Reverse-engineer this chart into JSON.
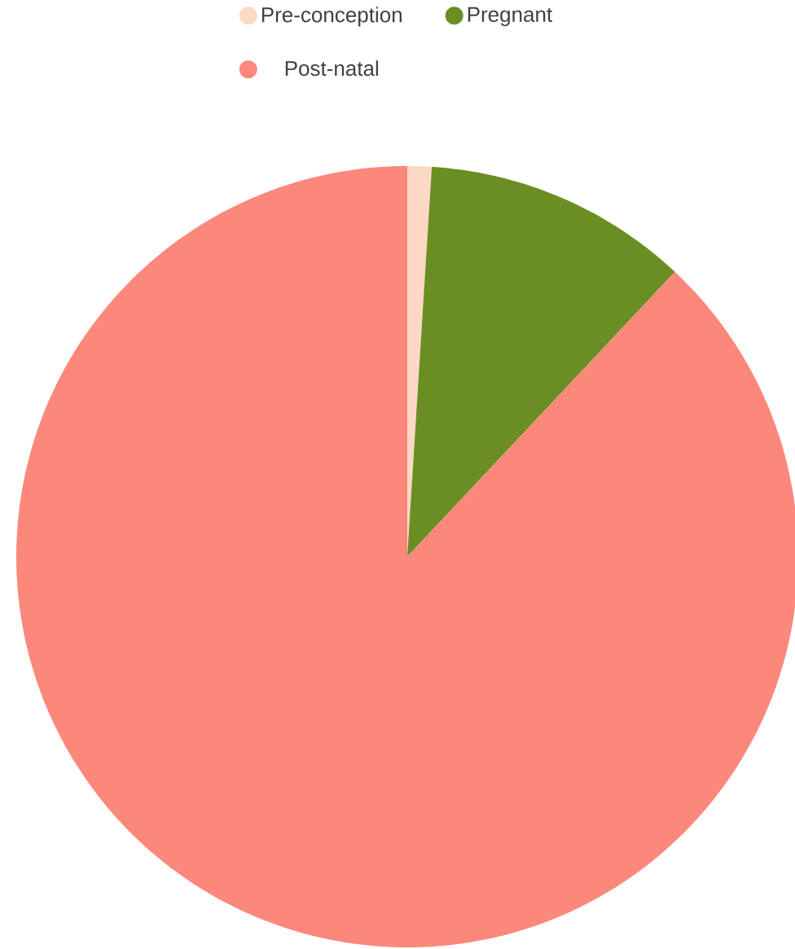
{
  "chart_data": {
    "type": "pie",
    "categories": [
      "Pre-conception",
      "Pregnant",
      "Post-natal"
    ],
    "values": [
      1,
      11,
      88
    ],
    "colors": [
      "#fdd8c5",
      "#6b8e23",
      "#fc887c"
    ],
    "legend": "top"
  }
}
